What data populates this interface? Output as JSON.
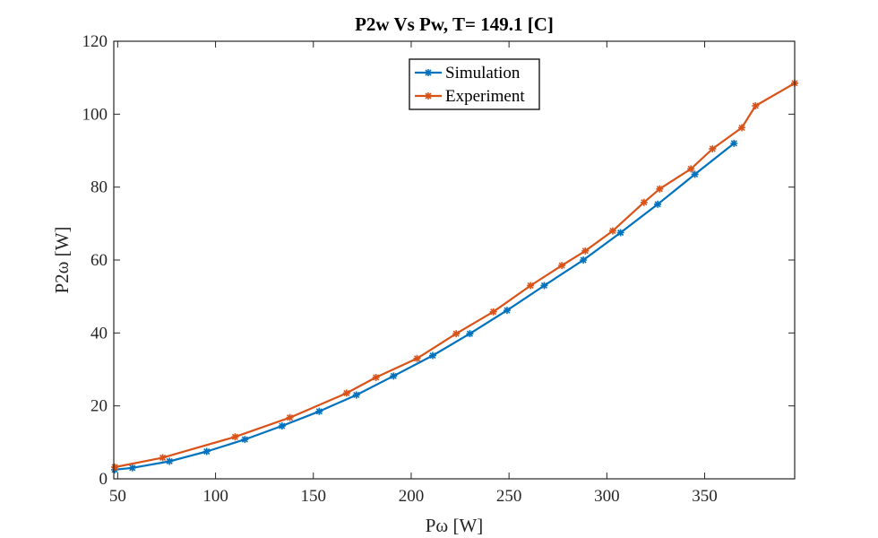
{
  "chart_data": {
    "type": "line",
    "title": "P2w Vs Pw, T= 149.1 [C]",
    "xlabel": "Pω [W]",
    "ylabel": "P2ω [W]",
    "xlim": [
      48,
      396
    ],
    "ylim": [
      0,
      120
    ],
    "xticks": [
      50,
      100,
      150,
      200,
      250,
      300,
      350
    ],
    "yticks": [
      0,
      20,
      40,
      60,
      80,
      100,
      120
    ],
    "grid": false,
    "legend_position": "top-center",
    "series": [
      {
        "name": "Simulation",
        "color": "#0072BD",
        "marker": "asterisk",
        "x": [
          48.5,
          57.5,
          76.5,
          95.5,
          115,
          134,
          153,
          172,
          191,
          211,
          230,
          249,
          268,
          288,
          307,
          326,
          345,
          365
        ],
        "y": [
          2.5,
          3.0,
          4.8,
          7.5,
          10.8,
          14.5,
          18.5,
          23.0,
          28.2,
          33.8,
          39.8,
          46.2,
          53.0,
          60.0,
          67.5,
          75.3,
          83.5,
          92.0
        ]
      },
      {
        "name": "Experiment",
        "color": "#D95319",
        "marker": "asterisk",
        "x": [
          48.5,
          73,
          110,
          138,
          167,
          182,
          203,
          223,
          242,
          261,
          277,
          289,
          303,
          319,
          327,
          343,
          354,
          369,
          376,
          396
        ],
        "y": [
          3.2,
          5.8,
          11.5,
          16.8,
          23.5,
          27.8,
          33.0,
          39.8,
          45.8,
          53.0,
          58.5,
          62.5,
          68.0,
          75.8,
          79.5,
          85.0,
          90.5,
          96.3,
          102.3,
          108.5
        ]
      }
    ]
  }
}
